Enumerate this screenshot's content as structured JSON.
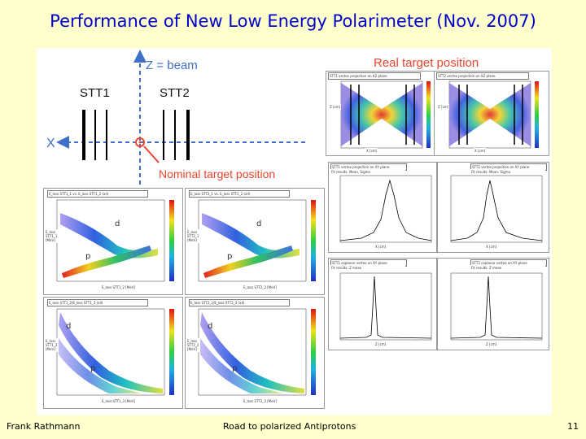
{
  "slide": {
    "title": "Performance of New Low Energy Polarimeter (Nov. 2007)",
    "footer_left": "Frank Rathmann",
    "footer_center": "Road to polarized Antiprotons",
    "page_number": "11"
  },
  "diagram": {
    "z_axis": "Z = beam",
    "x_axis": "X",
    "stt1": "STT1",
    "stt2": "STT2",
    "nominal": "Nominal target position",
    "real": "Real target position",
    "accent": "#e8452c",
    "axis_color": "#3f6fc8"
  },
  "histos_2d": [
    {
      "header": "E_loss STT1_1 vs. E_loss STT1_2 (all)",
      "d": "d",
      "p": "p",
      "xlabel": "E_loss STT1_2 [MeV]",
      "ylabel": "E_loss STT1_1 [MeV]"
    },
    {
      "header": "E_loss STT2_1 vs. E_loss STT2_2 (all)",
      "d": "d",
      "p": "p",
      "xlabel": "E_loss STT2_2 [MeV]",
      "ylabel": "E_loss STT2_1 [MeV]"
    },
    {
      "header": "E_loss STT1_2/E_loss STT1_3 (all)",
      "d": "d",
      "p": "p",
      "xlabel": "E_loss STT1_3 [MeV]",
      "ylabel": "E_loss STT1_2 [MeV]"
    },
    {
      "header": "E_loss STT2_2/E_loss STT2_3 (all)",
      "d": "d",
      "p": "p",
      "xlabel": "E_loss STT2_3 [MeV]",
      "ylabel": "E_loss STT2_2 [MeV]"
    }
  ],
  "target_maps": [
    {
      "header": "STT1 vertex projection on XZ plane",
      "xlabel": "X [cm]",
      "ylabel": "Z [cm]"
    },
    {
      "header": "STT2 vertex projection on XZ plane",
      "xlabel": "X [cm]",
      "ylabel": "Z [cm]"
    }
  ],
  "projections": [
    {
      "header": "STT1 vertex projection on XY plane",
      "fit": "Fit results: Mean, Sigma",
      "xlabel": "X [cm]"
    },
    {
      "header": "STT2 vertex projection on XY plane",
      "fit": "Fit results: Mean, Sigma",
      "xlabel": "X [cm]"
    },
    {
      "header": "STT1 coplanar vertex on XY plane",
      "fit": "Fit results: Z mean",
      "xlabel": "Z [cm]"
    },
    {
      "header": "STT2 coplanar vertex on XY plane",
      "fit": "Fit results: Z mean",
      "xlabel": "Z [cm]"
    }
  ]
}
